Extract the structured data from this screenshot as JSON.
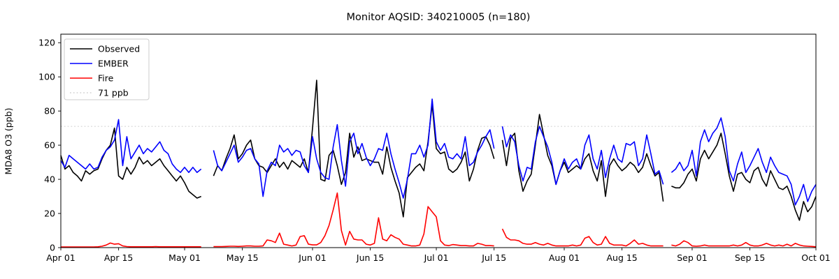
{
  "chart_data": {
    "type": "line",
    "title": "Monitor AQSID: 340210005 (n=180)",
    "ylabel": "MDA8 O3 (ppb)",
    "xlabel": "",
    "ylim": [
      0,
      125
    ],
    "grid": false,
    "legend_position": "upper left",
    "background_color": "#ffffff",
    "axis_color": "#000000",
    "x_start": "Apr 01",
    "x_end": "Oct 01",
    "n_days": 184,
    "missing_days": [
      "May 06",
      "May 07",
      "Jul 16",
      "Aug 26"
    ],
    "y_ticks": [
      0,
      20,
      40,
      60,
      80,
      100,
      120
    ],
    "x_tick_labels": [
      "Apr 01",
      "Apr 15",
      "May 01",
      "May 15",
      "Jun 01",
      "Jun 15",
      "Jul 01",
      "Jul 15",
      "Aug 01",
      "Aug 15",
      "Sep 01",
      "Sep 15",
      "Oct 01"
    ],
    "x_tick_days": [
      0,
      14,
      30,
      44,
      61,
      75,
      91,
      105,
      122,
      136,
      153,
      167,
      183
    ],
    "threshold": {
      "value": 71,
      "label": "71 ppb",
      "color": "#d3d3d3",
      "style": "dotted"
    },
    "series": [
      {
        "name": "Observed",
        "color": "#000000",
        "values": [
          54,
          46,
          48,
          44,
          42,
          39,
          45,
          43,
          45,
          46,
          52,
          57,
          60,
          70,
          42,
          40,
          47,
          43,
          47,
          53,
          49,
          51,
          48,
          50,
          52,
          48,
          45,
          42,
          39,
          42,
          38,
          33,
          31,
          29,
          30,
          null,
          null,
          42,
          48,
          45,
          52,
          58,
          66,
          52,
          55,
          60,
          63,
          52,
          48,
          47,
          44,
          48,
          52,
          47,
          50,
          46,
          51,
          49,
          47,
          52,
          44,
          70,
          98,
          40,
          39,
          54,
          57,
          48,
          37,
          44,
          67,
          53,
          59,
          51,
          52,
          51,
          50,
          50,
          43,
          59,
          47,
          39,
          32,
          18,
          41,
          44,
          47,
          49,
          45,
          62,
          84,
          58,
          55,
          56,
          46,
          44,
          46,
          50,
          56,
          39,
          46,
          57,
          64,
          65,
          60,
          52,
          null,
          63,
          48,
          64,
          67,
          45,
          33,
          39,
          43,
          60,
          78,
          66,
          54,
          48,
          37,
          45,
          50,
          44,
          46,
          48,
          46,
          52,
          55,
          45,
          39,
          51,
          30,
          48,
          52,
          48,
          45,
          47,
          50,
          48,
          44,
          47,
          55,
          48,
          42,
          44,
          27,
          null,
          36,
          35,
          35,
          38,
          43,
          46,
          39,
          52,
          57,
          52,
          56,
          60,
          67,
          55,
          42,
          33,
          43,
          44,
          40,
          38,
          45,
          47,
          40,
          36,
          45,
          40,
          35,
          34,
          36,
          30,
          22,
          16,
          27,
          21,
          24,
          30
        ]
      },
      {
        "name": "EMBER",
        "color": "#0000ff",
        "values": [
          51,
          47,
          54,
          52,
          50,
          48,
          46,
          49,
          46,
          47,
          53,
          57,
          59,
          63,
          75,
          48,
          65,
          52,
          56,
          60,
          55,
          58,
          56,
          59,
          62,
          57,
          55,
          49,
          46,
          44,
          47,
          44,
          47,
          44,
          46,
          null,
          null,
          57,
          48,
          45,
          50,
          55,
          60,
          50,
          53,
          57,
          58,
          52,
          49,
          30,
          45,
          50,
          48,
          60,
          56,
          58,
          54,
          57,
          56,
          48,
          44,
          65,
          52,
          44,
          41,
          40,
          59,
          72,
          51,
          36,
          62,
          67,
          55,
          61,
          53,
          48,
          52,
          58,
          57,
          67,
          55,
          46,
          38,
          29,
          40,
          55,
          55,
          60,
          53,
          60,
          87,
          62,
          57,
          61,
          53,
          52,
          55,
          52,
          65,
          48,
          50,
          56,
          60,
          65,
          69,
          58,
          null,
          71,
          59,
          66,
          62,
          48,
          39,
          47,
          46,
          62,
          71,
          65,
          59,
          50,
          37,
          45,
          52,
          46,
          50,
          52,
          46,
          60,
          66,
          52,
          46,
          57,
          41,
          52,
          60,
          52,
          50,
          61,
          60,
          62,
          48,
          52,
          66,
          55,
          43,
          45,
          37,
          null,
          44,
          46,
          50,
          45,
          48,
          57,
          42,
          62,
          69,
          62,
          67,
          70,
          76,
          65,
          45,
          39,
          49,
          56,
          44,
          48,
          53,
          58,
          50,
          44,
          53,
          48,
          44,
          43,
          42,
          37,
          25,
          30,
          37,
          27,
          33,
          37
        ]
      },
      {
        "name": "Fire",
        "color": "#ff0000",
        "values": [
          0.4,
          0.4,
          0.4,
          0.4,
          0.4,
          0.4,
          0.4,
          0.4,
          0.4,
          0.5,
          0.8,
          1.5,
          2.7,
          2.0,
          2.3,
          1.0,
          0.6,
          0.5,
          0.5,
          0.5,
          0.5,
          0.5,
          0.5,
          0.6,
          0.5,
          0.5,
          0.5,
          0.5,
          0.5,
          0.5,
          0.5,
          0.5,
          0.5,
          0.5,
          0.5,
          null,
          null,
          0.6,
          0.6,
          0.6,
          0.7,
          0.8,
          0.8,
          0.7,
          0.8,
          1.0,
          1.0,
          0.8,
          0.8,
          1.0,
          4.5,
          4.0,
          3.0,
          8.5,
          2.0,
          1.5,
          1.0,
          1.5,
          6.5,
          7.0,
          2.0,
          1.6,
          1.6,
          3.0,
          7.0,
          13,
          22,
          32,
          10,
          1.5,
          9.5,
          5.0,
          4.5,
          4.5,
          2.0,
          1.5,
          2.5,
          17.5,
          5.0,
          4.0,
          7.5,
          6.0,
          5.0,
          2.0,
          1.5,
          1.0,
          1.0,
          1.5,
          8.0,
          24,
          21,
          18,
          4.0,
          1.5,
          1.2,
          1.8,
          1.5,
          1.2,
          1.2,
          1.0,
          1.0,
          2.5,
          2.0,
          1.2,
          1.2,
          1.0,
          null,
          11,
          6.0,
          4.5,
          4.5,
          4.0,
          2.5,
          2.0,
          2.0,
          3.0,
          2.0,
          1.5,
          2.5,
          1.5,
          1.0,
          1.0,
          1.0,
          1.0,
          1.5,
          1.0,
          1.5,
          5.5,
          6.5,
          3.0,
          1.5,
          2.0,
          6.5,
          2.5,
          1.5,
          1.5,
          1.5,
          1.0,
          2.5,
          4.5,
          2.0,
          2.5,
          1.5,
          1.0,
          1.0,
          1.0,
          1.0,
          null,
          1.5,
          1.0,
          2.0,
          4.0,
          3.0,
          1.0,
          0.8,
          1.0,
          1.5,
          1.0,
          1.0,
          1.0,
          1.0,
          1.0,
          1.0,
          1.5,
          1.0,
          1.5,
          3.0,
          1.5,
          1.0,
          1.0,
          1.5,
          2.5,
          1.5,
          1.0,
          1.5,
          1.0,
          2.0,
          1.0,
          2.5,
          1.5,
          1.0,
          0.8,
          0.7,
          0.5
        ]
      }
    ],
    "legend_entries": [
      "Observed",
      "EMBER",
      "Fire",
      "71 ppb"
    ]
  }
}
